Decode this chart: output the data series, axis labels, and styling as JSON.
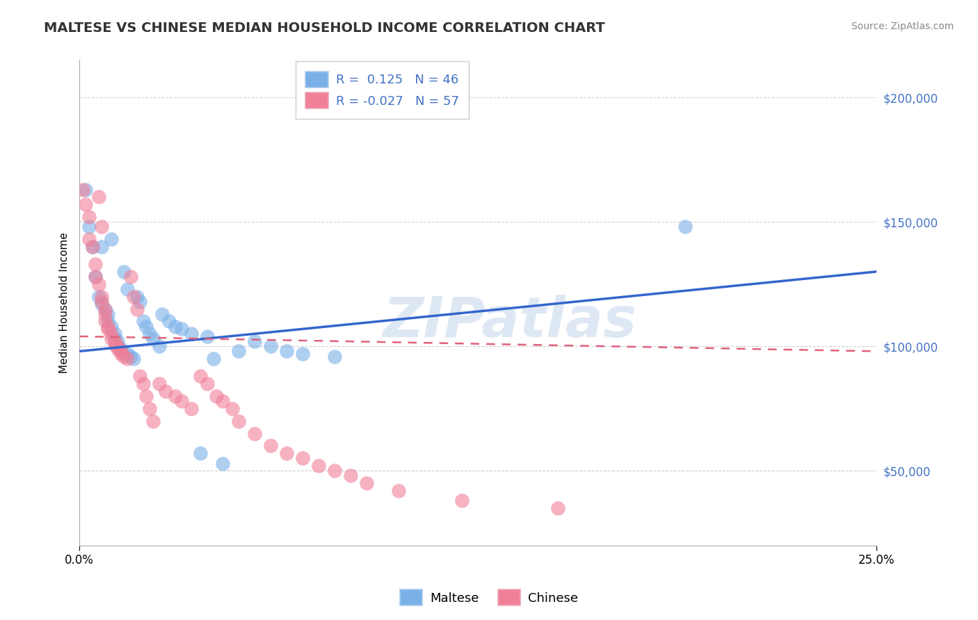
{
  "title": "MALTESE VS CHINESE MEDIAN HOUSEHOLD INCOME CORRELATION CHART",
  "source_text": "Source: ZipAtlas.com",
  "ylabel": "Median Household Income",
  "xlim": [
    0.0,
    0.25
  ],
  "ylim": [
    20000,
    215000
  ],
  "yticks": [
    50000,
    100000,
    150000,
    200000
  ],
  "ytick_labels": [
    "$50,000",
    "$100,000",
    "$150,000",
    "$200,000"
  ],
  "xticks": [
    0.0,
    0.25
  ],
  "xtick_labels": [
    "0.0%",
    "25.0%"
  ],
  "maltese_color": "#7ab0e8",
  "chinese_color": "#f08098",
  "maltese_line_color": "#3366cc",
  "chinese_line_color": "#e0607a",
  "background_color": "#ffffff",
  "grid_color": "#d0d0d0",
  "watermark_text": "ZIPatlas",
  "title_fontsize": 14,
  "axis_label_fontsize": 11,
  "tick_label_color": "#4472c4",
  "right_ytick_color": "#4472c4",
  "legend_r1": "R =  0.125   N = 46",
  "legend_r2": "R = -0.027   N = 57",
  "legend_color": "#4472c4",
  "maltese_label": "Maltese",
  "chinese_label": "Chinese",
  "maltese_line_y0": 98000,
  "maltese_line_y1": 130000,
  "chinese_line_y0": 104000,
  "chinese_line_y1": 98000,
  "maltese_x": [
    0.002,
    0.003,
    0.004,
    0.005,
    0.006,
    0.007,
    0.007,
    0.008,
    0.009,
    0.009,
    0.01,
    0.01,
    0.011,
    0.011,
    0.012,
    0.012,
    0.013,
    0.013,
    0.014,
    0.015,
    0.015,
    0.016,
    0.017,
    0.018,
    0.019,
    0.02,
    0.021,
    0.022,
    0.023,
    0.025,
    0.026,
    0.028,
    0.03,
    0.032,
    0.035,
    0.038,
    0.04,
    0.042,
    0.045,
    0.05,
    0.055,
    0.06,
    0.065,
    0.07,
    0.08,
    0.19
  ],
  "maltese_y": [
    163000,
    148000,
    140000,
    128000,
    120000,
    117000,
    140000,
    115000,
    113000,
    110000,
    108000,
    143000,
    105000,
    103000,
    102000,
    100000,
    99000,
    98000,
    130000,
    123000,
    97000,
    96000,
    95000,
    120000,
    118000,
    110000,
    108000,
    105000,
    103000,
    100000,
    113000,
    110000,
    108000,
    107000,
    105000,
    57000,
    104000,
    95000,
    53000,
    98000,
    102000,
    100000,
    98000,
    97000,
    96000,
    148000
  ],
  "chinese_x": [
    0.001,
    0.002,
    0.003,
    0.003,
    0.004,
    0.005,
    0.005,
    0.006,
    0.006,
    0.007,
    0.007,
    0.007,
    0.008,
    0.008,
    0.008,
    0.009,
    0.009,
    0.01,
    0.01,
    0.011,
    0.011,
    0.012,
    0.012,
    0.013,
    0.013,
    0.014,
    0.015,
    0.016,
    0.017,
    0.018,
    0.019,
    0.02,
    0.021,
    0.022,
    0.023,
    0.025,
    0.027,
    0.03,
    0.032,
    0.035,
    0.038,
    0.04,
    0.043,
    0.045,
    0.048,
    0.05,
    0.055,
    0.06,
    0.065,
    0.07,
    0.075,
    0.08,
    0.085,
    0.09,
    0.1,
    0.12,
    0.15
  ],
  "chinese_y": [
    163000,
    157000,
    152000,
    143000,
    140000,
    133000,
    128000,
    125000,
    160000,
    148000,
    120000,
    118000,
    115000,
    113000,
    110000,
    108000,
    107000,
    105000,
    103000,
    102000,
    101000,
    100000,
    99000,
    98000,
    97000,
    96000,
    95000,
    128000,
    120000,
    115000,
    88000,
    85000,
    80000,
    75000,
    70000,
    85000,
    82000,
    80000,
    78000,
    75000,
    88000,
    85000,
    80000,
    78000,
    75000,
    70000,
    65000,
    60000,
    57000,
    55000,
    52000,
    50000,
    48000,
    45000,
    42000,
    38000,
    35000
  ]
}
